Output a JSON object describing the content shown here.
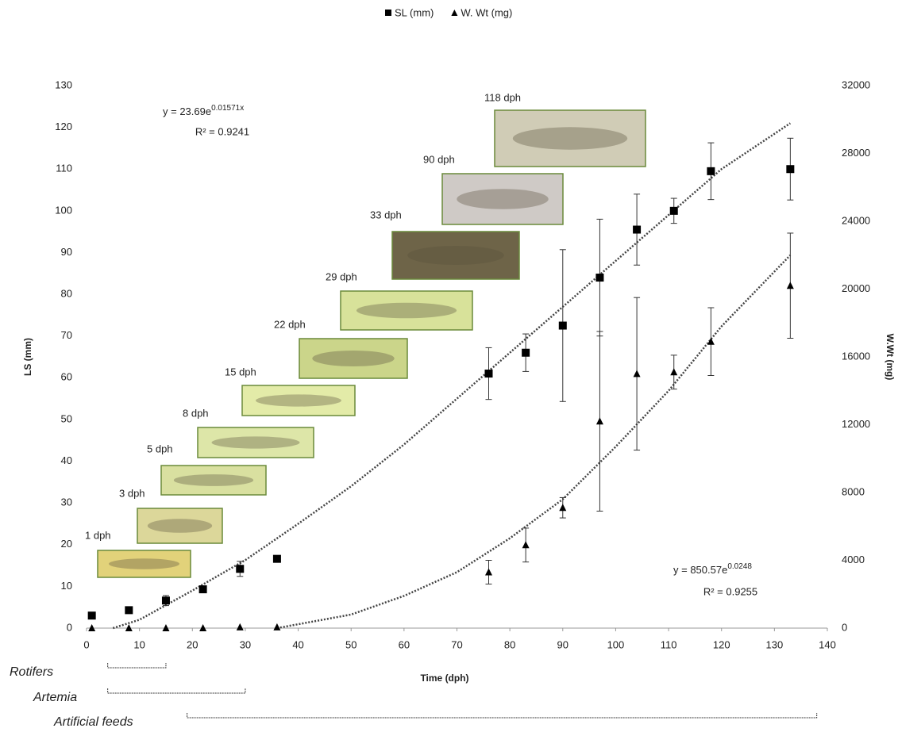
{
  "chart_data": {
    "type": "scatter",
    "legend": "top",
    "xlabel": "Time (dph)",
    "ylabel": "LS (mm)",
    "y2label": "W.Wt (mg)",
    "xlim": [
      0,
      140
    ],
    "xticks": [
      0,
      10,
      20,
      30,
      40,
      50,
      60,
      70,
      80,
      90,
      100,
      110,
      120,
      130,
      140
    ],
    "ylim": [
      0,
      130
    ],
    "yticks": [
      0,
      10,
      20,
      30,
      40,
      50,
      60,
      70,
      80,
      90,
      100,
      110,
      120,
      130
    ],
    "y2lim": [
      0,
      32000
    ],
    "y2ticks": [
      0,
      4000,
      8000,
      12000,
      16000,
      20000,
      24000,
      28000,
      32000
    ],
    "x": [
      1,
      8,
      15,
      22,
      29,
      36,
      76,
      83,
      90,
      97,
      104,
      111,
      118,
      133
    ],
    "series": [
      {
        "name": "SL (mm)",
        "marker": "square",
        "color": "#000000",
        "values": [
          3,
          4.3,
          6.6,
          9.3,
          14.2,
          16.6,
          61,
          66,
          72.5,
          84,
          95.5,
          100,
          109.5,
          110
        ],
        "errors": [
          null,
          null,
          1.2,
          null,
          1.8,
          null,
          6.2,
          4.5,
          18.2,
          14,
          8.5,
          3,
          6.8,
          7.4
        ],
        "trend": {
          "x": [
            5,
            10,
            20,
            30,
            40,
            50,
            60,
            70,
            80,
            90,
            100,
            110,
            120,
            133
          ],
          "values": [
            0,
            2,
            9,
            16.3,
            25,
            34,
            44,
            55,
            66,
            77,
            88,
            99,
            110,
            121
          ]
        },
        "equation": "y = 23.69e",
        "exponent": "0.01571x",
        "r2": "R² = 0.9241"
      },
      {
        "name": "W. Wt (mg)",
        "marker": "triangle",
        "color": "#000000",
        "axis": "y2",
        "values": [
          0,
          0,
          0,
          0,
          50,
          50,
          3300,
          4900,
          7100,
          12200,
          15000,
          15100,
          16900,
          20200
        ],
        "errors": [
          null,
          null,
          null,
          null,
          null,
          null,
          700,
          1000,
          600,
          5300,
          4500,
          1000,
          2000,
          3100
        ],
        "trend": {
          "x": [
            36,
            50,
            60,
            70,
            80,
            90,
            100,
            110,
            120,
            133
          ],
          "values": [
            0,
            800,
            1900,
            3300,
            5300,
            7600,
            10700,
            14000,
            17800,
            22000
          ]
        },
        "equation": "y = 850.57e",
        "exponent": "0.0248",
        "r2": "R² = 0.9255"
      }
    ],
    "photos": [
      "1 dph",
      "3 dph",
      "5 dph",
      "8 dph",
      "15 dph",
      "22 dph",
      "29 dph",
      "33 dph",
      "90 dph",
      "118 dph"
    ],
    "feeding": [
      {
        "label": "Rotifers",
        "range": [
          4,
          15
        ]
      },
      {
        "label": "Artemia",
        "range": [
          4,
          30
        ]
      },
      {
        "label": "Artificial feeds",
        "range": [
          19,
          138
        ]
      }
    ]
  }
}
